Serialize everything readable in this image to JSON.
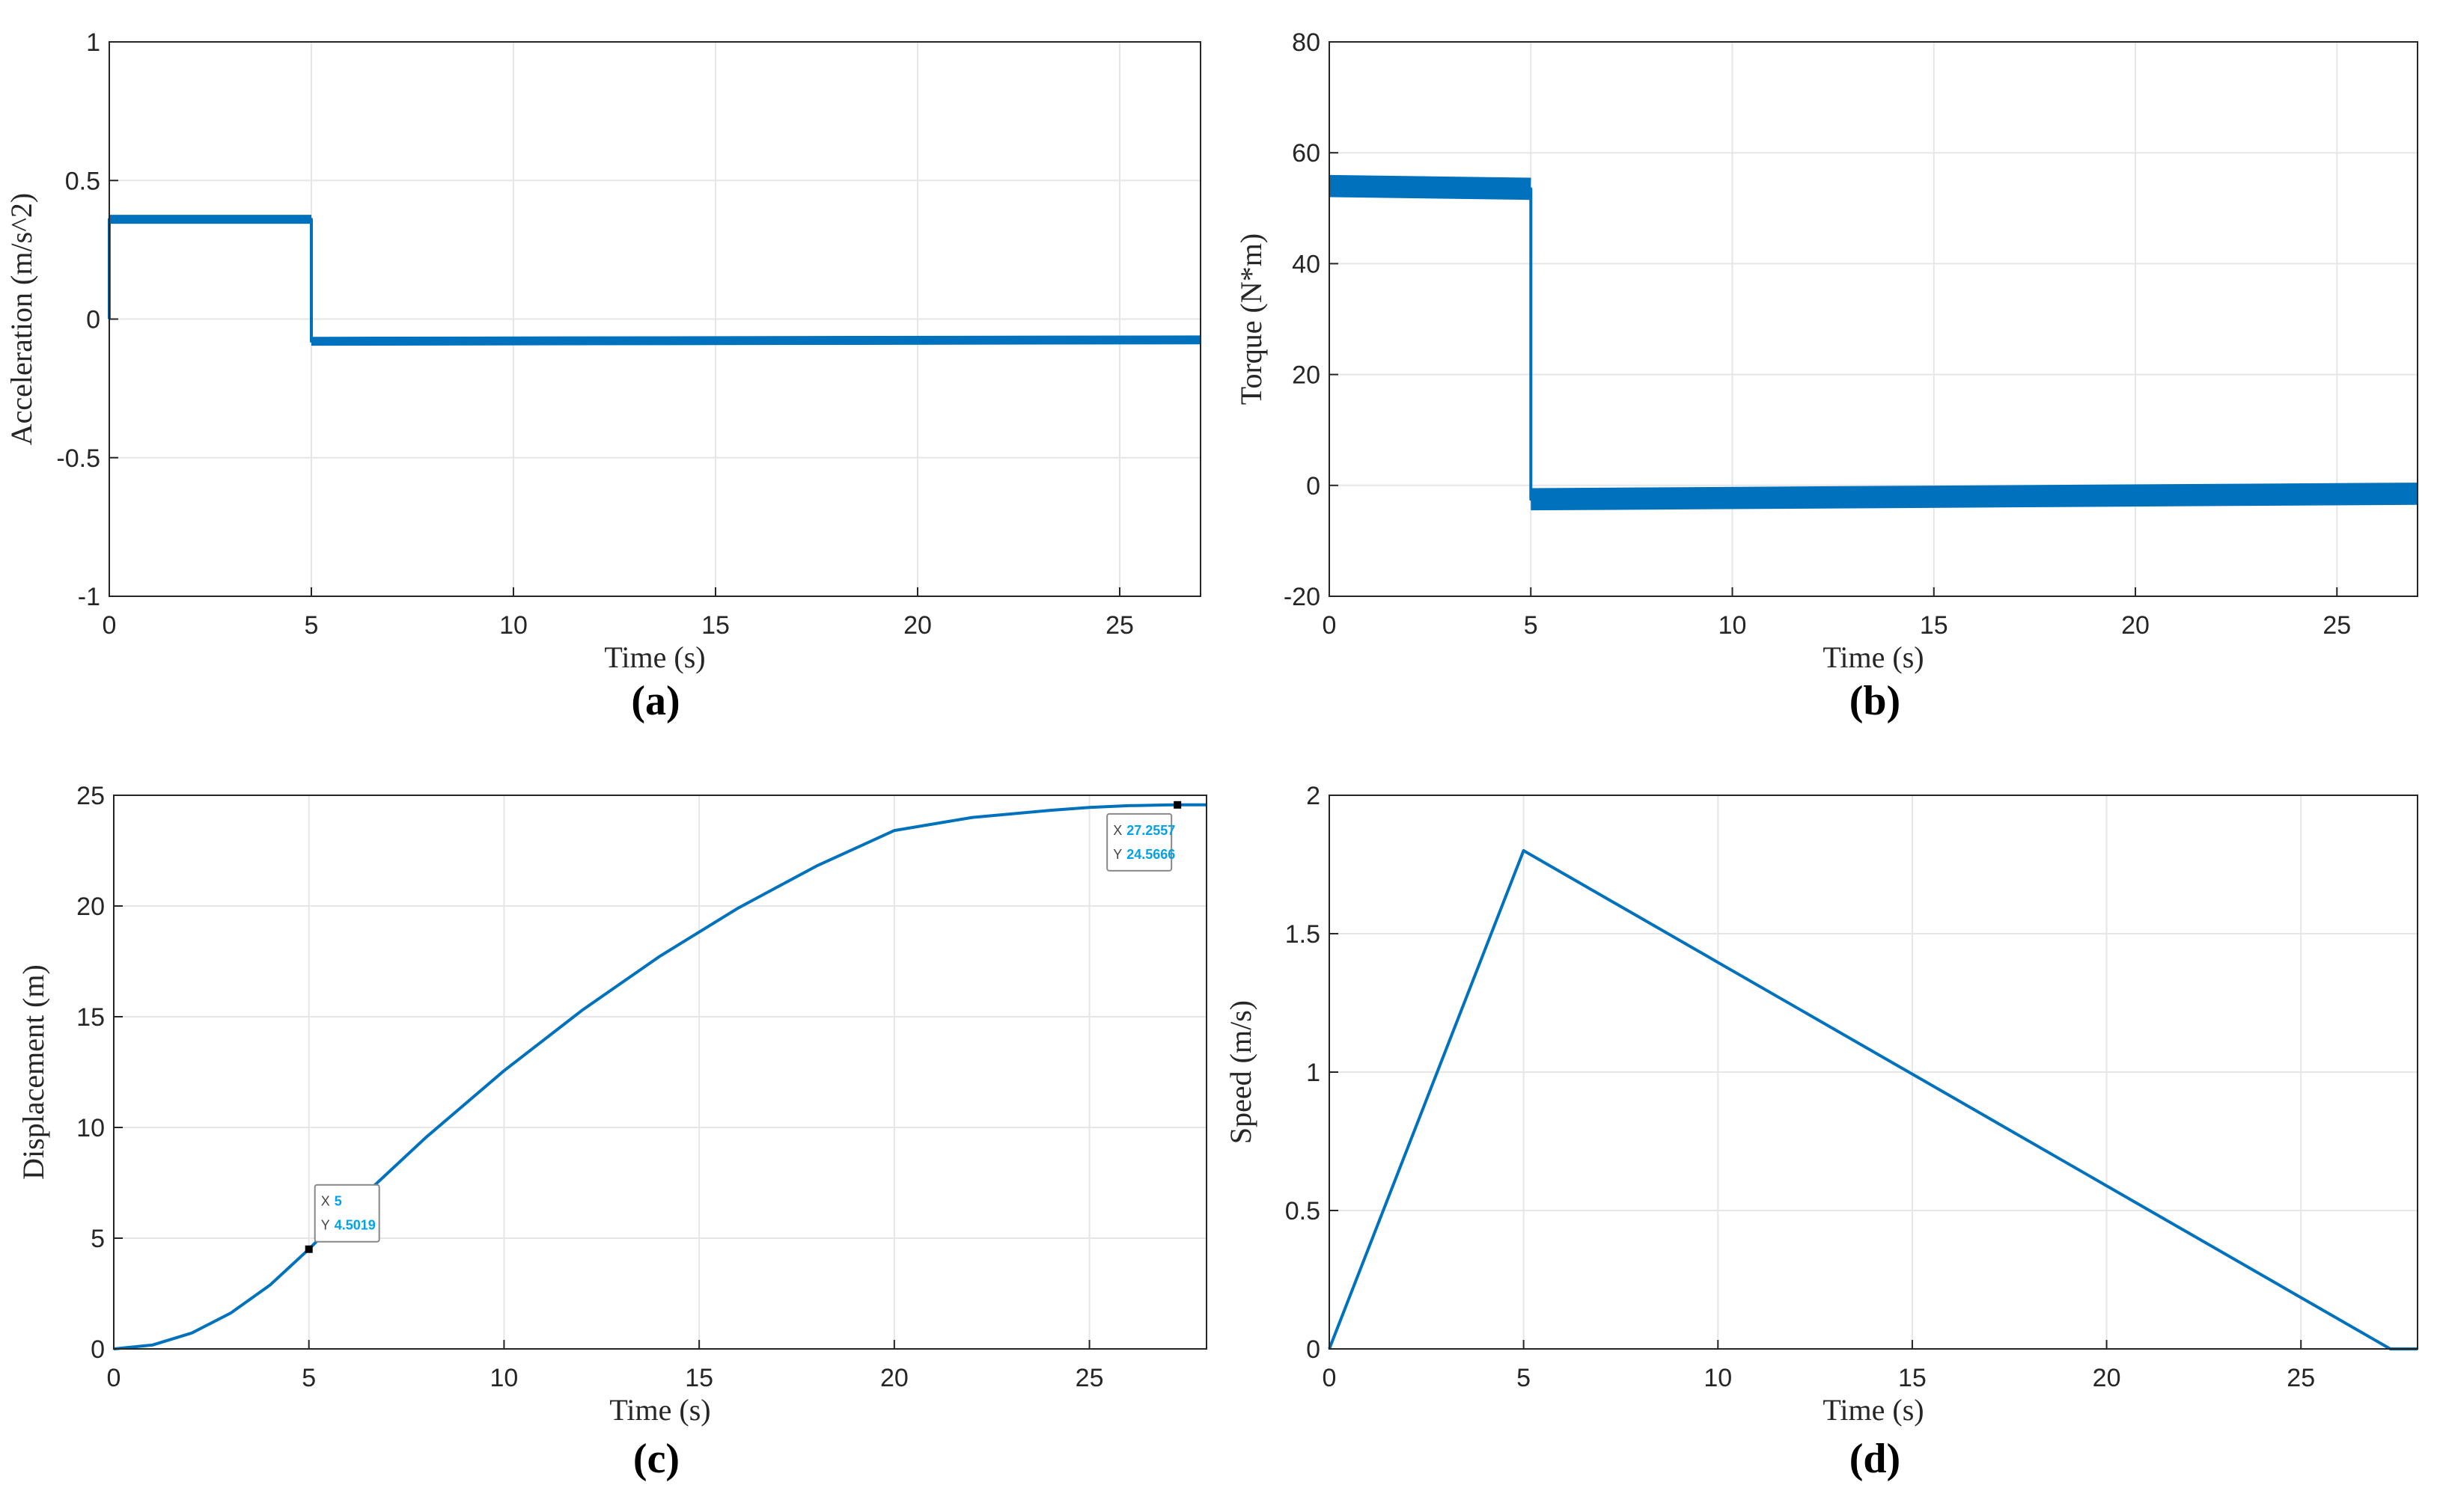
{
  "colors": {
    "line": "#0072bd",
    "grid": "#e6e6e6",
    "axis": "#262626",
    "datatip_value": "#00a2e8"
  },
  "chart_data": [
    {
      "id": "a",
      "type": "line",
      "panel_label": "(a)",
      "xlabel": "Time (s)",
      "ylabel": "Acceleration (m/s^2)",
      "xlim": [
        0,
        27
      ],
      "ylim": [
        -1,
        1
      ],
      "xticks": [
        0,
        5,
        10,
        15,
        20,
        25
      ],
      "yticks": [
        -1,
        -0.5,
        0,
        0.5,
        1
      ],
      "ytick_labels": [
        "-1",
        "-0.5",
        "0",
        "0.5",
        "1"
      ],
      "grid": true,
      "series": [
        {
          "x": [
            0,
            0,
            5,
            5,
            27
          ],
          "y": [
            0,
            0.36,
            0.36,
            -0.08,
            -0.075
          ],
          "noise_band": 0.012
        }
      ]
    },
    {
      "id": "b",
      "type": "line",
      "panel_label": "(b)",
      "xlabel": "Time (s)",
      "ylabel": "Torque (N*m)",
      "xlim": [
        0,
        27
      ],
      "ylim": [
        -20,
        80
      ],
      "xticks": [
        0,
        5,
        10,
        15,
        20,
        25
      ],
      "yticks": [
        -20,
        0,
        20,
        40,
        60,
        80
      ],
      "ytick_labels": [
        "-20",
        "0",
        "20",
        "40",
        "60",
        "80"
      ],
      "grid": true,
      "series": [
        {
          "x": [
            0,
            5,
            5,
            27
          ],
          "y": [
            54,
            53.5,
            -2.5,
            -1.5
          ],
          "noise_band": 1.8
        }
      ]
    },
    {
      "id": "c",
      "type": "line",
      "panel_label": "(c)",
      "xlabel": "Time (s)",
      "ylabel": "Displacement (m)",
      "xlim": [
        0,
        28
      ],
      "ylim": [
        0,
        25
      ],
      "xticks": [
        0,
        5,
        10,
        15,
        20,
        25
      ],
      "yticks": [
        0,
        5,
        10,
        15,
        20,
        25
      ],
      "ytick_labels": [
        "0",
        "5",
        "10",
        "15",
        "20",
        "25"
      ],
      "grid": true,
      "series": [
        {
          "x": [
            0,
            1,
            2,
            3,
            4,
            5,
            6,
            8,
            10,
            12,
            14,
            16,
            18,
            20,
            22,
            24,
            25,
            26,
            27,
            27.2557,
            28
          ],
          "y": [
            0,
            0.18,
            0.72,
            1.62,
            2.88,
            4.5019,
            6.27,
            9.55,
            12.56,
            15.29,
            17.74,
            19.91,
            21.8,
            23.41,
            24.0,
            24.32,
            24.45,
            24.53,
            24.565,
            24.5666,
            24.5666
          ]
        }
      ],
      "datatips": [
        {
          "x": 5,
          "y": 4.5019,
          "x_label": "X",
          "x_value": "5",
          "y_label": "Y",
          "y_value": "4.5019"
        },
        {
          "x": 27.2557,
          "y": 24.5666,
          "x_label": "X",
          "x_value": "27.2557",
          "y_label": "Y",
          "y_value": "24.5666"
        }
      ]
    },
    {
      "id": "d",
      "type": "line",
      "panel_label": "(d)",
      "xlabel": "Time (s)",
      "ylabel": "Speed (m/s)",
      "xlim": [
        0,
        28
      ],
      "ylim": [
        0,
        2
      ],
      "xticks": [
        0,
        5,
        10,
        15,
        20,
        25
      ],
      "yticks": [
        0,
        0.5,
        1,
        1.5,
        2
      ],
      "ytick_labels": [
        "0",
        "0.5",
        "1",
        "1.5",
        "2"
      ],
      "grid": true,
      "series": [
        {
          "x": [
            0,
            5,
            27.3,
            28
          ],
          "y": [
            0,
            1.8,
            0,
            0
          ]
        }
      ]
    }
  ]
}
